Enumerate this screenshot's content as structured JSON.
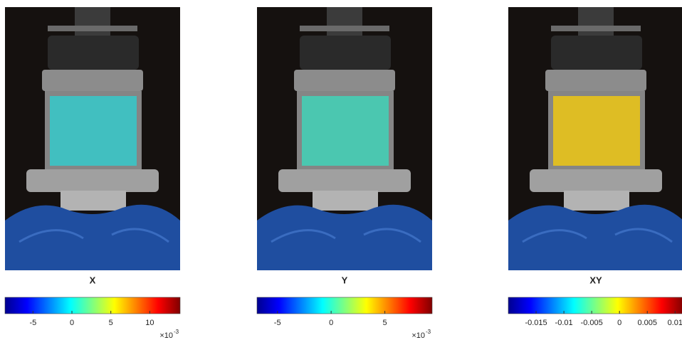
{
  "chart_data": [
    {
      "type": "colorbar",
      "title": "X",
      "color": "#3cc4c6",
      "xlim": [
        -8.6,
        13.9
      ],
      "xticks": [
        -5,
        0,
        5,
        10
      ],
      "scale_base": "×10",
      "scale_exponent": "-3"
    },
    {
      "type": "colorbar",
      "title": "Y",
      "color": "#46cdb4",
      "xlim": [
        -6.9,
        9.4
      ],
      "xticks": [
        -5,
        0,
        5
      ],
      "scale_base": "×10",
      "scale_exponent": "-3"
    },
    {
      "type": "colorbar",
      "title": "XY",
      "color": "#e6c21c",
      "xlim": [
        -0.02,
        0.0115
      ],
      "xticks": [
        -0.015,
        -0.01,
        -0.005,
        0,
        0.005,
        0.01
      ]
    }
  ]
}
